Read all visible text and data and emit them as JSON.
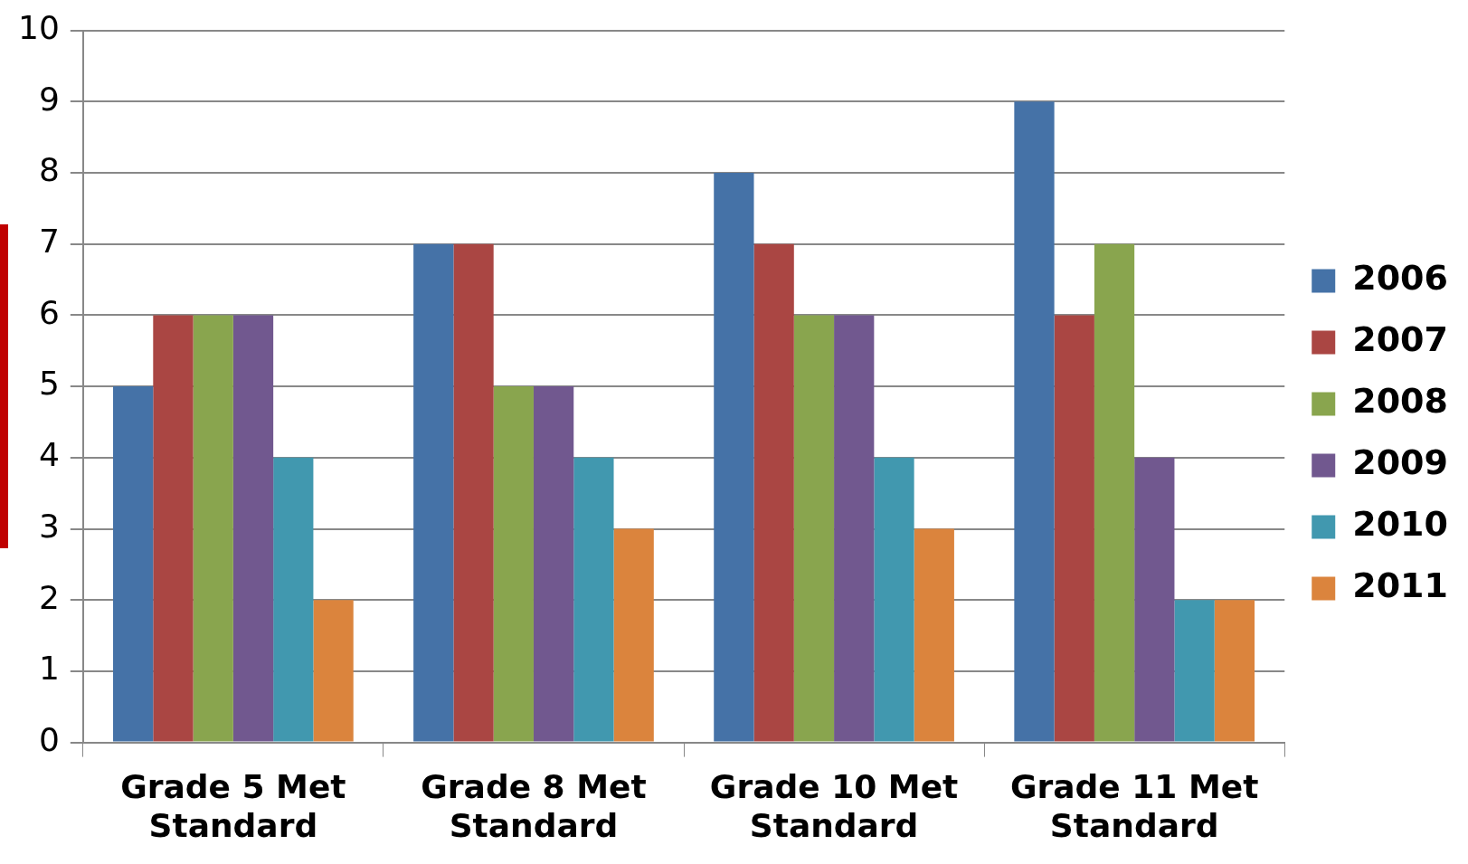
{
  "chart_data": {
    "type": "bar",
    "categories": [
      "Grade 5 Met Standard",
      "Grade 8 Met Standard",
      "Grade 10 Met Standard",
      "Grade 11 Met Standard"
    ],
    "series": [
      {
        "name": "2006",
        "color": "#4572a7",
        "values": [
          5,
          7,
          8,
          9
        ]
      },
      {
        "name": "2007",
        "color": "#aa4643",
        "values": [
          6,
          7,
          7,
          6
        ]
      },
      {
        "name": "2008",
        "color": "#89a54e",
        "values": [
          6,
          5,
          6,
          7
        ]
      },
      {
        "name": "2009",
        "color": "#71588f",
        "values": [
          6,
          5,
          6,
          4
        ]
      },
      {
        "name": "2010",
        "color": "#4198af",
        "values": [
          4,
          4,
          4,
          2
        ]
      },
      {
        "name": "2011",
        "color": "#db843d",
        "values": [
          2,
          3,
          3,
          2
        ]
      }
    ],
    "ylim": [
      0,
      10
    ],
    "yticks": [
      0,
      1,
      2,
      3,
      4,
      5,
      6,
      7,
      8,
      9,
      10
    ],
    "grid": "y",
    "legend": "right"
  }
}
